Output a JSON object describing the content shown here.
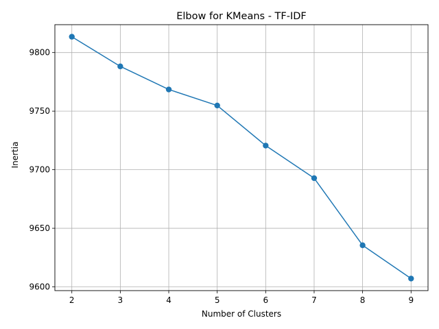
{
  "chart_data": {
    "type": "line",
    "title": "Elbow for KMeans - TF-IDF",
    "xlabel": "Number of Clusters",
    "ylabel": "Inertia",
    "x": [
      2,
      3,
      4,
      5,
      6,
      7,
      8,
      9
    ],
    "series": [
      {
        "values": [
          9813.5,
          9788.2,
          9768.5,
          9754.8,
          9720.6,
          9692.8,
          9635.5,
          9607.1
        ],
        "color": "#1f77b4",
        "marker": "circle"
      }
    ],
    "xticks": [
      "2",
      "3",
      "4",
      "5",
      "6",
      "7",
      "8",
      "9"
    ],
    "yticks": [
      "9600",
      "9650",
      "9700",
      "9750",
      "9800"
    ],
    "ytick_values": [
      9600,
      9650,
      9700,
      9750,
      9800
    ],
    "xlim": [
      1.65,
      9.35
    ],
    "ylim": [
      9596.8,
      9823.8
    ],
    "grid": true,
    "grid_color": "#b0b0b0"
  }
}
